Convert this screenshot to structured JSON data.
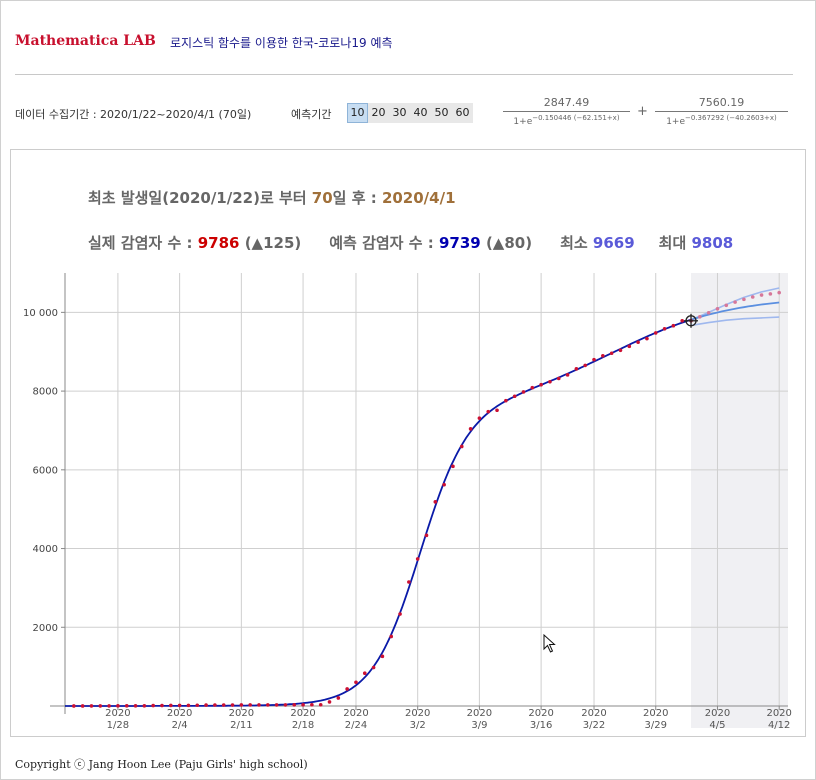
{
  "header": {
    "brand": "Mathematica LAB",
    "title": "로지스틱 함수를 이용한 한국-코로나19 예측"
  },
  "controls": {
    "period_label": "데이터 수집기간 : 2020/1/22~2020/4/1 (70일)",
    "forecast_label": "예측기간",
    "forecast_options": [
      "10",
      "20",
      "30",
      "40",
      "50",
      "60"
    ],
    "forecast_selected": "10"
  },
  "formula": {
    "term1_num": "2847.49",
    "term1_den_base": "1+e",
    "term1_den_exp": "−0.150446 (−62.151+x)",
    "plus": "+",
    "term2_num": "7560.19",
    "term2_den_base": "1+e",
    "term2_den_exp": "−0.367292 (−40.2603+x)"
  },
  "info": {
    "line1_prefix": "최초 발생일(2020/1/22)로 부터 ",
    "days": "70",
    "line1_mid": "일 후 : ",
    "date": "2020/4/1",
    "actual_label": "실제 감염자 수 : ",
    "actual_value": "9786",
    "actual_delta": "(▲125)",
    "pred_label": "예측 감염자 수 : ",
    "pred_value": "9739",
    "pred_delta": "(▲80)",
    "min_label": "최소 ",
    "min_value": "9669",
    "max_label": "최대 ",
    "max_value": "9808"
  },
  "footer": "Copyright ⓒ Jang Hoon Lee (Paju Girls' high school)",
  "chart_data": {
    "type": "line",
    "x_unit": "day since 2020/1/22",
    "xlim": [
      0,
      82
    ],
    "ylim": [
      0,
      11000
    ],
    "y_ticks": [
      2000,
      4000,
      6000,
      8000,
      10000
    ],
    "y_tick_labels": [
      "2000",
      "4000",
      "6000",
      "8000",
      "10 000"
    ],
    "x_ticks": [
      {
        "x": 6,
        "year": "2020",
        "date": "1/28"
      },
      {
        "x": 13,
        "year": "2020",
        "date": "2/4"
      },
      {
        "x": 20,
        "year": "2020",
        "date": "2/11"
      },
      {
        "x": 27,
        "year": "2020",
        "date": "2/18"
      },
      {
        "x": 33,
        "year": "2020",
        "date": "2/24"
      },
      {
        "x": 40,
        "year": "2020",
        "date": "3/2"
      },
      {
        "x": 47,
        "year": "2020",
        "date": "3/9"
      },
      {
        "x": 54,
        "year": "2020",
        "date": "3/16"
      },
      {
        "x": 60,
        "year": "2020",
        "date": "3/22"
      },
      {
        "x": 67,
        "year": "2020",
        "date": "3/29"
      },
      {
        "x": 74,
        "year": "2020",
        "date": "4/5"
      },
      {
        "x": 81,
        "year": "2020",
        "date": "4/12"
      }
    ],
    "forecast_region": [
      71,
      82
    ],
    "current_point": {
      "x": 71,
      "y": 9786
    },
    "model": {
      "a1": 2847.49,
      "k1": 0.150446,
      "c1": 62.151,
      "a2": 7560.19,
      "k2": 0.367292,
      "c2": 40.2603
    },
    "series": [
      {
        "name": "",
        "kind": "actual",
        "x": [
          1,
          2,
          3,
          4,
          5,
          6,
          7,
          8,
          9,
          10,
          11,
          12,
          13,
          14,
          15,
          16,
          17,
          18,
          19,
          20,
          21,
          22,
          23,
          24,
          25,
          26,
          27,
          28,
          29,
          30,
          31,
          32,
          33,
          34,
          35,
          36,
          37,
          38,
          39,
          40,
          41,
          42,
          43,
          44,
          45,
          46,
          47,
          48,
          49,
          50,
          51,
          52,
          53,
          54,
          55,
          56,
          57,
          58,
          59,
          60,
          61,
          62,
          63,
          64,
          65,
          66,
          67,
          68,
          69,
          70,
          71
        ],
        "y": [
          1,
          1,
          2,
          2,
          3,
          4,
          4,
          4,
          4,
          11,
          12,
          15,
          15,
          16,
          19,
          23,
          24,
          24,
          25,
          27,
          28,
          28,
          28,
          28,
          28,
          29,
          30,
          31,
          31,
          104,
          204,
          433,
          602,
          833,
          977,
          1261,
          1766,
          2337,
          3150,
          3736,
          4335,
          5186,
          5621,
          6088,
          6593,
          7041,
          7313,
          7478,
          7513,
          7755,
          7869,
          7979,
          8086,
          8162,
          8236,
          8320,
          8413,
          8565,
          8652,
          8799,
          8897,
          8961,
          9037,
          9137,
          9241,
          9332,
          9478,
          9583,
          9661,
          9786,
          9786
        ],
        "color": "#cc1133"
      },
      {
        "name": "",
        "kind": "forecast",
        "x": [
          72,
          73,
          74,
          75,
          76,
          77,
          78,
          79,
          80,
          81
        ],
        "y": [
          9888,
          9990,
          10090,
          10180,
          10260,
          10330,
          10390,
          10440,
          10470,
          10500
        ],
        "color": "#d77799"
      }
    ],
    "band_upper": {
      "x": [
        71,
        73,
        75,
        77,
        79,
        81
      ],
      "y": [
        9808,
        10000,
        10200,
        10380,
        10520,
        10620
      ]
    },
    "band_lower": {
      "x": [
        71,
        73,
        75,
        77,
        79,
        81
      ],
      "y": [
        9669,
        9740,
        9800,
        9840,
        9860,
        9880
      ]
    },
    "colors": {
      "fit": "#0a1aa8",
      "mean": "#5b8fe0",
      "band": "#9fb8ee",
      "grid": "#cfcfcf",
      "shade": "#f0f0f3"
    }
  }
}
